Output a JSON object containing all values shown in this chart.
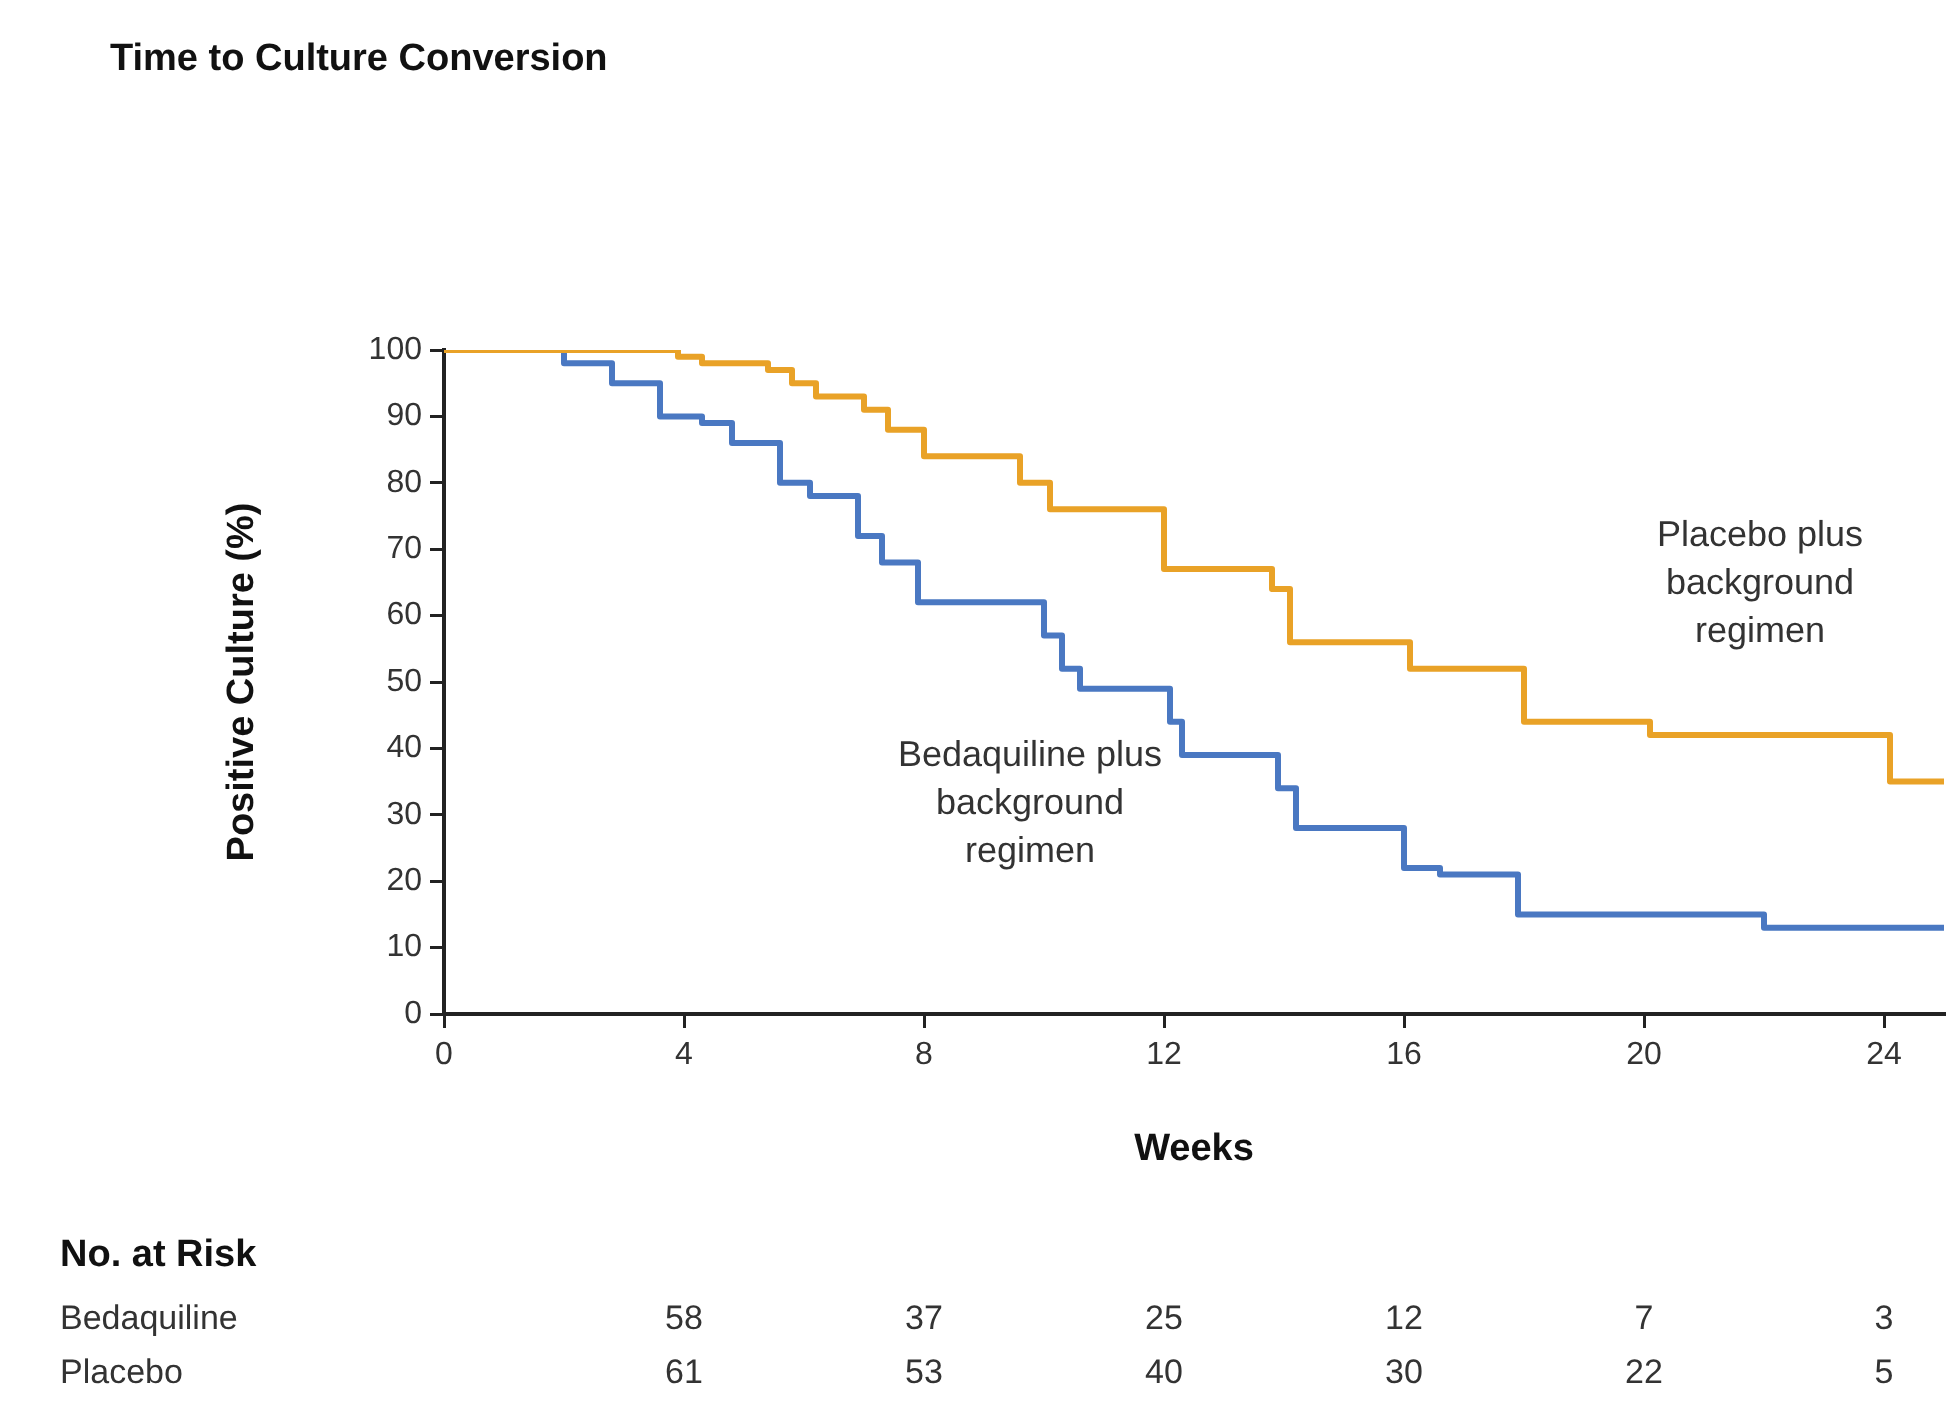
{
  "chart_data": {
    "type": "step",
    "title": "Time to Culture Conversion",
    "xlabel": "Weeks",
    "ylabel": "Positive Culture (%)",
    "xlim": [
      0,
      25
    ],
    "xticks": [
      0,
      4,
      8,
      12,
      16,
      20,
      24
    ],
    "ylim": [
      0,
      100
    ],
    "yticks": [
      0,
      10,
      20,
      30,
      40,
      50,
      60,
      70,
      80,
      90,
      100
    ],
    "grid": false,
    "legend": false,
    "line_style": "solid",
    "marker": "none",
    "series": [
      {
        "name": "Placebo plus background regimen",
        "color": "#e9a227",
        "x": [
          0,
          3.9,
          4.3,
          5.4,
          5.8,
          6.2,
          7.0,
          7.4,
          8.0,
          9.6,
          10.1,
          12.0,
          13.8,
          14.1,
          16.1,
          18.0,
          20.1,
          24.1,
          25
        ],
        "values": [
          100,
          99,
          98,
          97,
          95,
          93,
          91,
          88,
          84,
          80,
          76,
          67,
          64,
          56,
          52,
          44,
          42,
          35,
          35
        ]
      },
      {
        "name": "Bedaquiline plus background regimen",
        "color": "#4a78c2",
        "x": [
          0,
          2.0,
          2.8,
          3.6,
          4.3,
          4.8,
          5.6,
          6.1,
          6.9,
          7.3,
          7.9,
          10.0,
          10.3,
          10.6,
          12.1,
          12.3,
          13.9,
          14.2,
          16.0,
          16.6,
          17.9,
          22.0,
          25
        ],
        "values": [
          100,
          98,
          95,
          90,
          89,
          86,
          80,
          78,
          72,
          68,
          62,
          57,
          52,
          49,
          44,
          39,
          34,
          28,
          22,
          21,
          15,
          13,
          13
        ]
      }
    ],
    "annotations": [
      "No. at Risk",
      "Bedaquiline",
      "58",
      "37",
      "25",
      "12",
      "7",
      "3",
      "Placebo",
      "61",
      "53",
      "40",
      "30",
      "22",
      "5"
    ]
  }
}
